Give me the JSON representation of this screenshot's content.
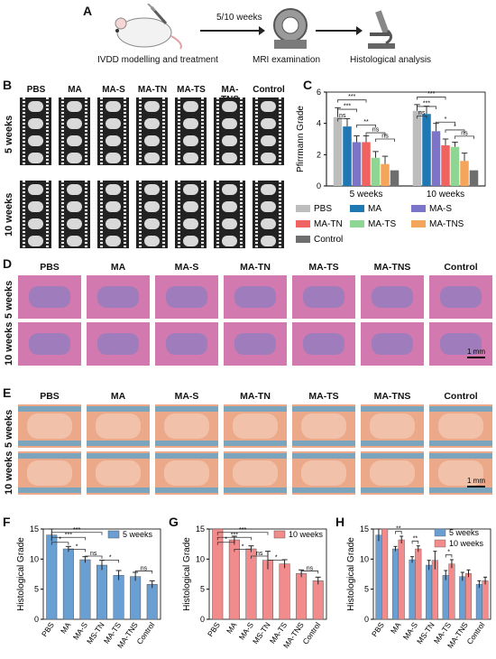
{
  "panels": {
    "A": "A",
    "B": "B",
    "C": "C",
    "D": "D",
    "E": "E",
    "F": "F",
    "G": "G",
    "H": "H"
  },
  "workflow": {
    "step1": "IVDD modelling and treatment",
    "arrow_label": "5/10 weeks",
    "step2": "MRI examination",
    "step3": "Histological analysis"
  },
  "mri": {
    "groups": [
      "PBS",
      "MA",
      "MA-S",
      "MA-TN",
      "MA-TS",
      "MA-TNS",
      "Control"
    ],
    "rows": [
      "5 weeks",
      "10 weeks"
    ]
  },
  "histology": {
    "groups": [
      "PBS",
      "MA",
      "MA-S",
      "MA-TN",
      "MA-TS",
      "MA-TNS",
      "Control"
    ],
    "rows": [
      "5 weeks",
      "10 weeks"
    ],
    "scale": "1 mm"
  },
  "colors": {
    "PBS": "#bdbdbd",
    "MA": "#1f77b4",
    "MA-S": "#7b74c9",
    "MA-TN": "#f0625f",
    "MA-TS": "#8fd694",
    "MA-TNS": "#f5a55a",
    "Control": "#6e6e6e",
    "weeks5": "#6a9fd4",
    "weeks10": "#f28b8b"
  },
  "chart_data": [
    {
      "panel": "C",
      "type": "bar",
      "categories": [
        "5 weeks",
        "10 weeks"
      ],
      "ylabel": "Pfirrmann Grade",
      "ylim": [
        0,
        6
      ],
      "yticks": [
        0,
        2,
        4,
        6
      ],
      "series": [
        {
          "name": "PBS",
          "values": [
            4.4,
            4.8
          ],
          "errors": [
            0.6,
            0.4
          ]
        },
        {
          "name": "MA",
          "values": [
            3.8,
            4.6
          ],
          "errors": [
            0.5,
            0.5
          ]
        },
        {
          "name": "MA-S",
          "values": [
            2.8,
            3.5
          ],
          "errors": [
            0.4,
            0.5
          ]
        },
        {
          "name": "MA-TN",
          "values": [
            2.8,
            2.6
          ],
          "errors": [
            0.4,
            0.4
          ]
        },
        {
          "name": "MA-TS",
          "values": [
            1.8,
            2.5
          ],
          "errors": [
            0.4,
            0.3
          ]
        },
        {
          "name": "MA-TNS",
          "values": [
            1.4,
            1.6
          ],
          "errors": [
            0.5,
            0.5
          ]
        },
        {
          "name": "Control",
          "values": [
            1.0,
            1.0
          ],
          "errors": [
            0,
            0
          ]
        }
      ],
      "significance": [
        "ns",
        "***",
        "***",
        "**",
        "ns",
        "ns",
        "ns",
        "***",
        "***",
        "*",
        "*",
        "ns",
        "***"
      ]
    },
    {
      "panel": "F",
      "type": "bar",
      "categories": [
        "PBS",
        "MA",
        "MA-S",
        "MS-TN",
        "MA-TS",
        "MA-TNS",
        "Control"
      ],
      "values": [
        14.0,
        11.7,
        9.9,
        9.0,
        7.3,
        7.1,
        5.8
      ],
      "errors": [
        1.0,
        0.4,
        0.5,
        0.8,
        0.8,
        0.7,
        0.6
      ],
      "legend": "5 weeks",
      "ylabel": "Histological Grade",
      "ylim": [
        0,
        15
      ],
      "yticks": [
        0,
        5,
        10,
        15
      ],
      "significance": [
        "*",
        "***",
        "***",
        "*",
        "ns",
        "*",
        "ns"
      ]
    },
    {
      "panel": "G",
      "type": "bar",
      "categories": [
        "PBS",
        "MA",
        "MA-S",
        "MS-TN",
        "MA-TS",
        "MA-TNS",
        "Control"
      ],
      "values": [
        15.0,
        13.2,
        11.7,
        9.8,
        9.2,
        7.6,
        6.4
      ],
      "errors": [
        0,
        0.6,
        0.5,
        1.5,
        0.7,
        0.6,
        0.6
      ],
      "legend": "10 weeks",
      "ylabel": "Histological Grade",
      "ylim": [
        0,
        15
      ],
      "yticks": [
        0,
        5,
        10,
        15
      ],
      "significance": [
        "*",
        "***",
        "***",
        "*",
        "ns",
        "*",
        "ns"
      ]
    },
    {
      "panel": "H",
      "type": "bar",
      "categories": [
        "PBS",
        "MA",
        "MA-S",
        "MS-TN",
        "MA-TS",
        "MA-TNS",
        "Control"
      ],
      "ylabel": "Histological Grade",
      "ylim": [
        0,
        15
      ],
      "yticks": [
        0,
        5,
        10,
        15
      ],
      "series": [
        {
          "name": "5 weeks",
          "values": [
            14.0,
            11.7,
            9.9,
            9.0,
            7.3,
            7.1,
            5.8
          ],
          "errors": [
            1.0,
            0.4,
            0.5,
            0.8,
            0.8,
            0.7,
            0.6
          ]
        },
        {
          "name": "10 weeks",
          "values": [
            15.0,
            13.2,
            11.7,
            9.8,
            9.2,
            7.6,
            6.4
          ],
          "errors": [
            0,
            0.6,
            0.5,
            1.5,
            0.7,
            0.6,
            0.6
          ]
        }
      ],
      "significance": [
        "**",
        "**",
        "*"
      ]
    }
  ]
}
